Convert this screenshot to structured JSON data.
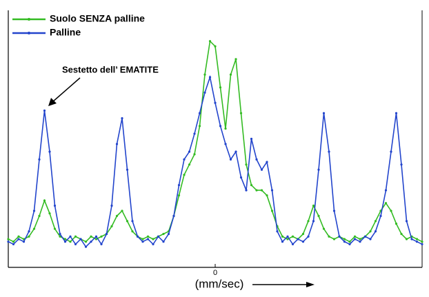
{
  "chart_data": {
    "type": "line",
    "xlabel": "(mm/sec)",
    "annotation": "Sestetto dell’ EMATITE",
    "legend": "upper left",
    "xlim": [
      -10,
      10
    ],
    "ylim": [
      0,
      100
    ],
    "xticks": [
      0
    ],
    "x": [
      -10,
      -9.75,
      -9.5,
      -9.25,
      -9,
      -8.75,
      -8.5,
      -8.25,
      -8,
      -7.75,
      -7.5,
      -7.25,
      -7,
      -6.75,
      -6.5,
      -6.25,
      -6,
      -5.75,
      -5.5,
      -5.25,
      -5,
      -4.75,
      -4.5,
      -4.25,
      -4,
      -3.75,
      -3.5,
      -3.25,
      -3,
      -2.75,
      -2.5,
      -2.25,
      -2,
      -1.75,
      -1.5,
      -1.25,
      -1,
      -0.75,
      -0.5,
      -0.25,
      0,
      0.25,
      0.5,
      0.75,
      1,
      1.25,
      1.5,
      1.75,
      2,
      2.25,
      2.5,
      2.75,
      3,
      3.25,
      3.5,
      3.75,
      4,
      4.25,
      4.5,
      4.75,
      5,
      5.25,
      5.5,
      5.75,
      6,
      6.25,
      6.5,
      6.75,
      7,
      7.25,
      7.5,
      7.75,
      8,
      8.25,
      8.5,
      8.75,
      9,
      9.25,
      9.5,
      9.75,
      10
    ],
    "series": [
      {
        "name": "Suolo SENZA palline",
        "color": "#33bb22",
        "values": [
          11,
          10,
          12,
          11,
          12,
          15,
          20,
          26,
          21,
          15,
          12,
          11,
          10,
          12,
          11,
          10,
          12,
          11,
          12,
          13,
          16,
          20,
          22,
          18,
          14,
          12,
          11,
          12,
          11,
          12,
          13,
          14,
          20,
          28,
          36,
          40,
          44,
          55,
          75,
          88,
          86,
          70,
          54,
          75,
          81,
          60,
          40,
          32,
          30,
          30,
          28,
          22,
          16,
          12,
          11,
          12,
          11,
          13,
          18,
          24,
          20,
          15,
          12,
          11,
          12,
          11,
          10,
          12,
          11,
          12,
          14,
          18,
          22,
          25,
          22,
          17,
          13,
          11,
          12,
          11,
          10
        ]
      },
      {
        "name": "Palline",
        "color": "#2244cc",
        "values": [
          10,
          9,
          11,
          10,
          14,
          22,
          42,
          61,
          45,
          24,
          13,
          10,
          12,
          9,
          11,
          8,
          10,
          12,
          9,
          13,
          24,
          48,
          58,
          38,
          18,
          12,
          10,
          11,
          9,
          12,
          10,
          13,
          20,
          32,
          42,
          45,
          52,
          60,
          68,
          74,
          64,
          55,
          48,
          42,
          45,
          35,
          30,
          50,
          42,
          38,
          41,
          30,
          14,
          10,
          12,
          9,
          11,
          10,
          12,
          18,
          38,
          60,
          45,
          22,
          12,
          10,
          9,
          11,
          10,
          12,
          11,
          14,
          20,
          30,
          45,
          60,
          40,
          18,
          11,
          10,
          9
        ]
      }
    ]
  }
}
